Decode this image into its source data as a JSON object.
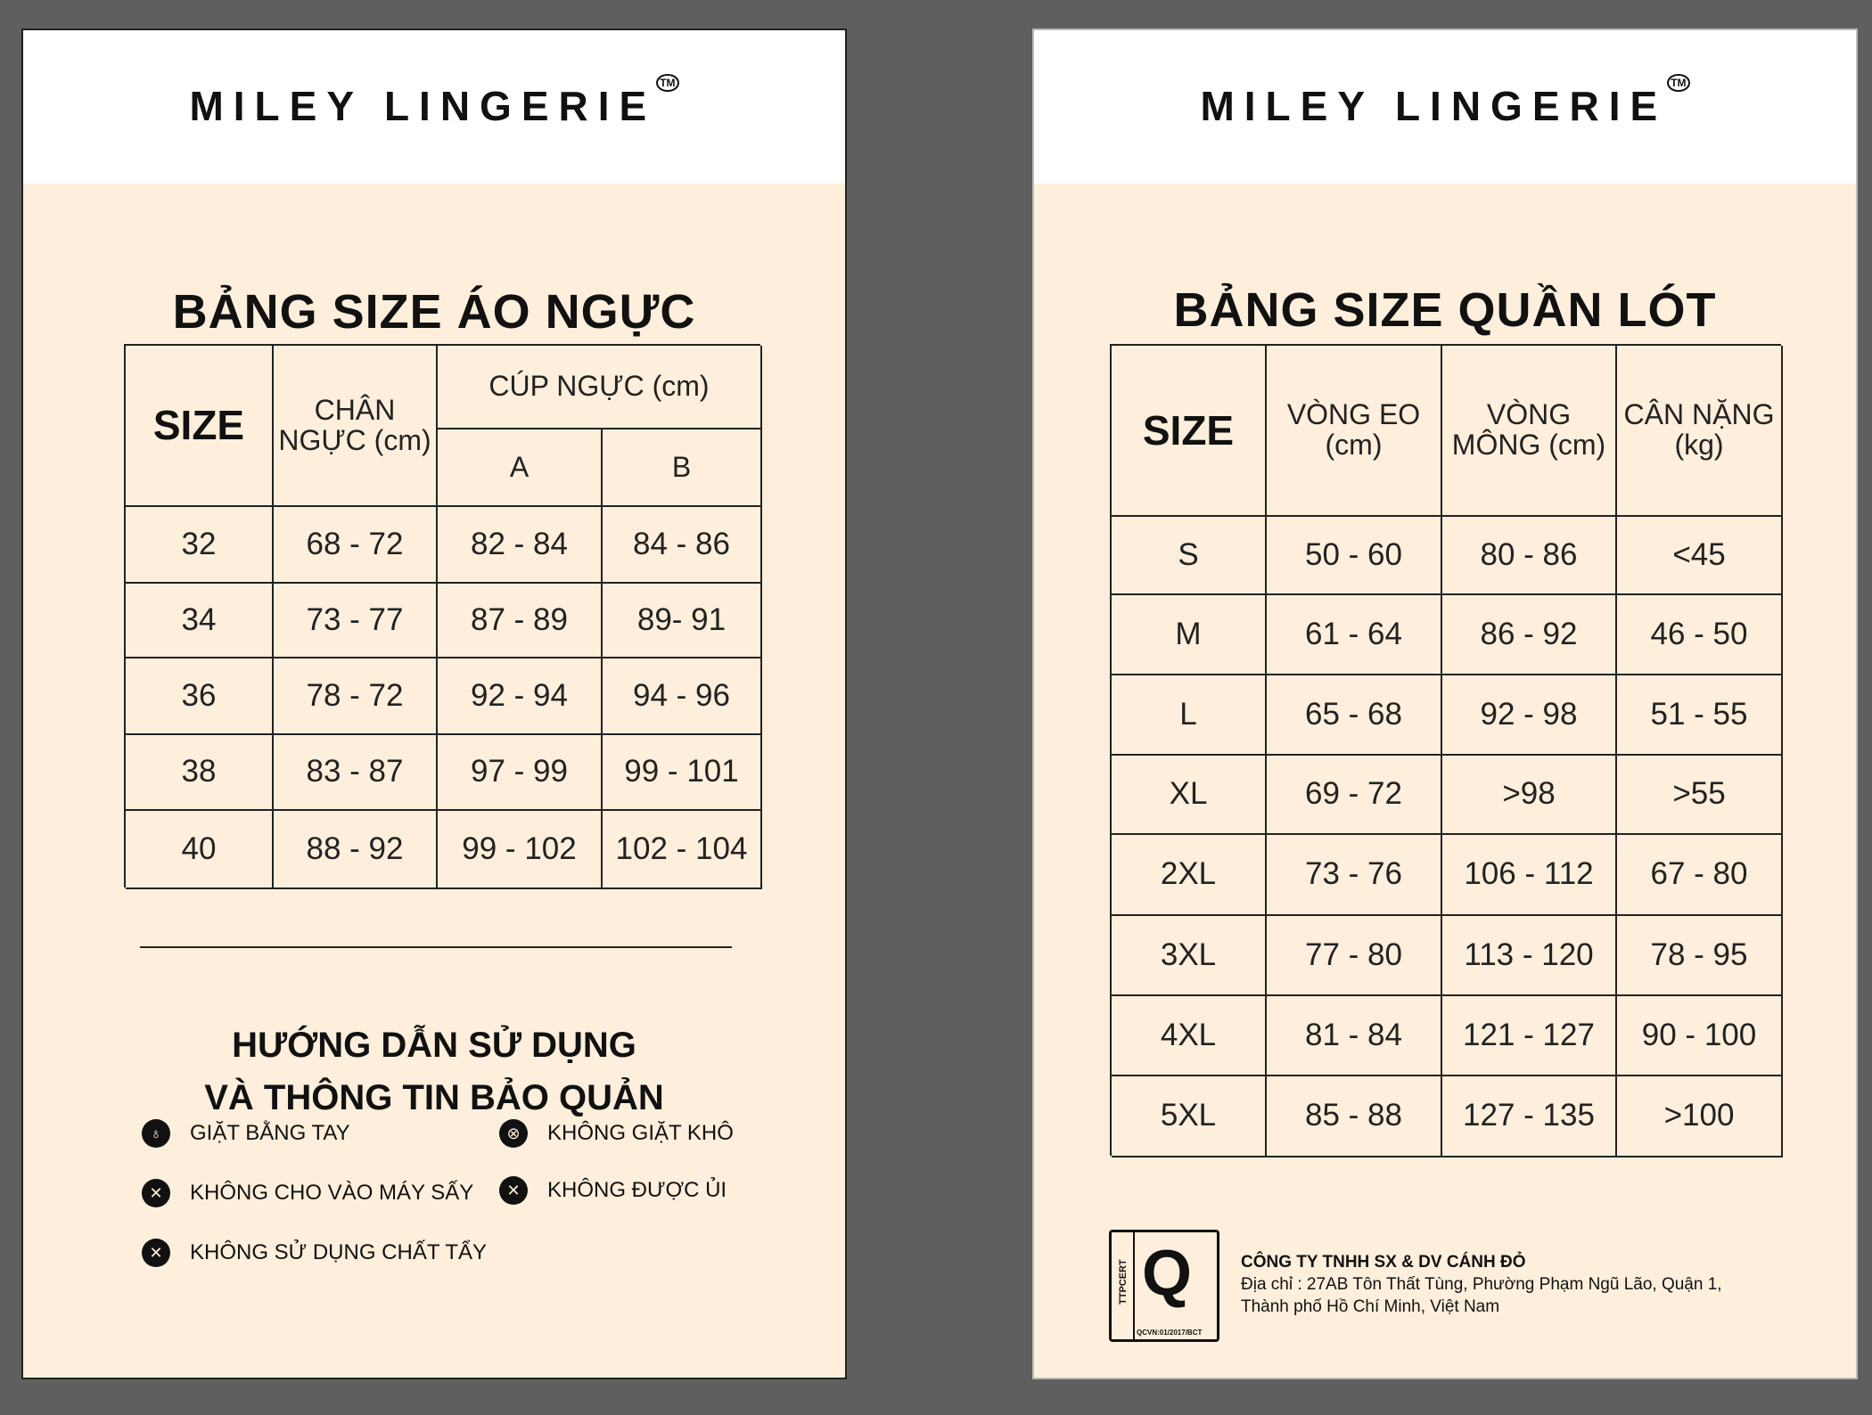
{
  "brand": {
    "logo": "MILEY LINGERIE",
    "tm": "TM"
  },
  "bra": {
    "title": "BẢNG SIZE ÁO NGỰC",
    "headers": {
      "size": "SIZE",
      "band": "CHÂN NGỰC (cm)",
      "cup": "CÚP NGỰC (cm)",
      "a": "A",
      "b": "B"
    },
    "rows": [
      [
        "32",
        "68 - 72",
        "82 - 84",
        "84 - 86"
      ],
      [
        "34",
        "73 - 77",
        "87 - 89",
        "89- 91"
      ],
      [
        "36",
        "78 - 72",
        "92 - 94",
        "94 - 96"
      ],
      [
        "38",
        "83 - 87",
        "97 - 99",
        "99 - 101"
      ],
      [
        "40",
        "88 - 92",
        "99 - 102",
        "102 - 104"
      ]
    ]
  },
  "care": {
    "heading1": "HƯỚNG DẪN SỬ DỤNG",
    "heading2": "VÀ THÔNG TIN BẢO QUẢN",
    "items": [
      {
        "label": "GIẶT BẰNG TAY",
        "icon": "hand-wash-icon"
      },
      {
        "label": "KHÔNG CHO VÀO MÁY SẤY",
        "icon": "no-tumble-dry-icon"
      },
      {
        "label": "KHÔNG SỬ DỤNG CHẤT TẨY",
        "icon": "no-bleach-icon"
      },
      {
        "label": "KHÔNG GIẶT KHÔ",
        "icon": "no-dry-clean-icon"
      },
      {
        "label": "KHÔNG ĐƯỢC ỦI",
        "icon": "no-iron-icon"
      }
    ]
  },
  "panty": {
    "title": "BẢNG SIZE QUẦN LÓT",
    "headers": [
      "SIZE",
      "VÒNG EO (cm)",
      "VÒNG MÔNG (cm)",
      "CÂN NẶNG (kg)"
    ],
    "rows": [
      [
        "S",
        "50 - 60",
        "80 - 86",
        "<45"
      ],
      [
        "M",
        "61 - 64",
        "86 - 92",
        "46 - 50"
      ],
      [
        "L",
        "65 - 68",
        "92 - 98",
        "51 - 55"
      ],
      [
        "XL",
        "69 - 72",
        ">98",
        ">55"
      ],
      [
        "2XL",
        "73 - 76",
        "106 - 112",
        "67 - 80"
      ],
      [
        "3XL",
        "77 - 80",
        "113 - 120",
        "78 - 95"
      ],
      [
        "4XL",
        "81 - 84",
        "121 - 127",
        "90 - 100"
      ],
      [
        "5XL",
        "85 - 88",
        "127 - 135",
        ">100"
      ]
    ]
  },
  "footer": {
    "cert_side": "TTPCERT",
    "cert_code": "QCVN:01/2017/BCT",
    "company": "CÔNG TY TNHH SX & DV CÁNH ĐỎ",
    "address1": "Địa chỉ : 27AB Tôn Thất Tùng, Phường Phạm Ngũ Lão, Quận 1,",
    "address2": "Thành phố Hồ Chí Minh, Việt Nam"
  }
}
